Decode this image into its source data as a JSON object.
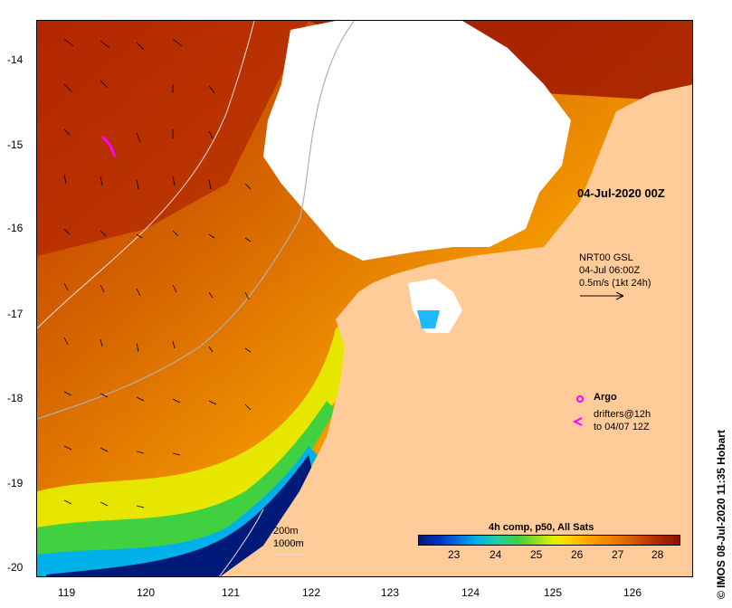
{
  "map": {
    "timestamp_label": "04-Jul-2020 00Z",
    "current_legend": {
      "line1": "NRT00 GSL",
      "line2": "04-Jul 06:00Z",
      "line3": "0.5m/s (1kt 24h)"
    },
    "argo_legend": {
      "label": "Argo",
      "drifters_line1": "drifters@12h",
      "drifters_line2": "to 04/07 12Z"
    },
    "contour_legend": {
      "line1": "200m",
      "line2": "1000m"
    },
    "colorbar": {
      "title": "4h comp, p50, All Sats",
      "tick_labels": [
        "23",
        "24",
        "25",
        "26",
        "27",
        "28"
      ],
      "range": [
        22.4,
        28.6
      ]
    },
    "credit": "IMOS 08-Jul-2020 11:35 Hobart",
    "x_ticks": [
      "119",
      "120",
      "121",
      "122",
      "123",
      "124",
      "125",
      "126"
    ],
    "y_ticks": [
      "-14",
      "-15",
      "-16",
      "-17",
      "-18",
      "-19",
      "-20"
    ],
    "colors": {
      "land": "#ffcc99",
      "cloud": "#ffffff",
      "argo_marker": "#ff00ff"
    }
  }
}
